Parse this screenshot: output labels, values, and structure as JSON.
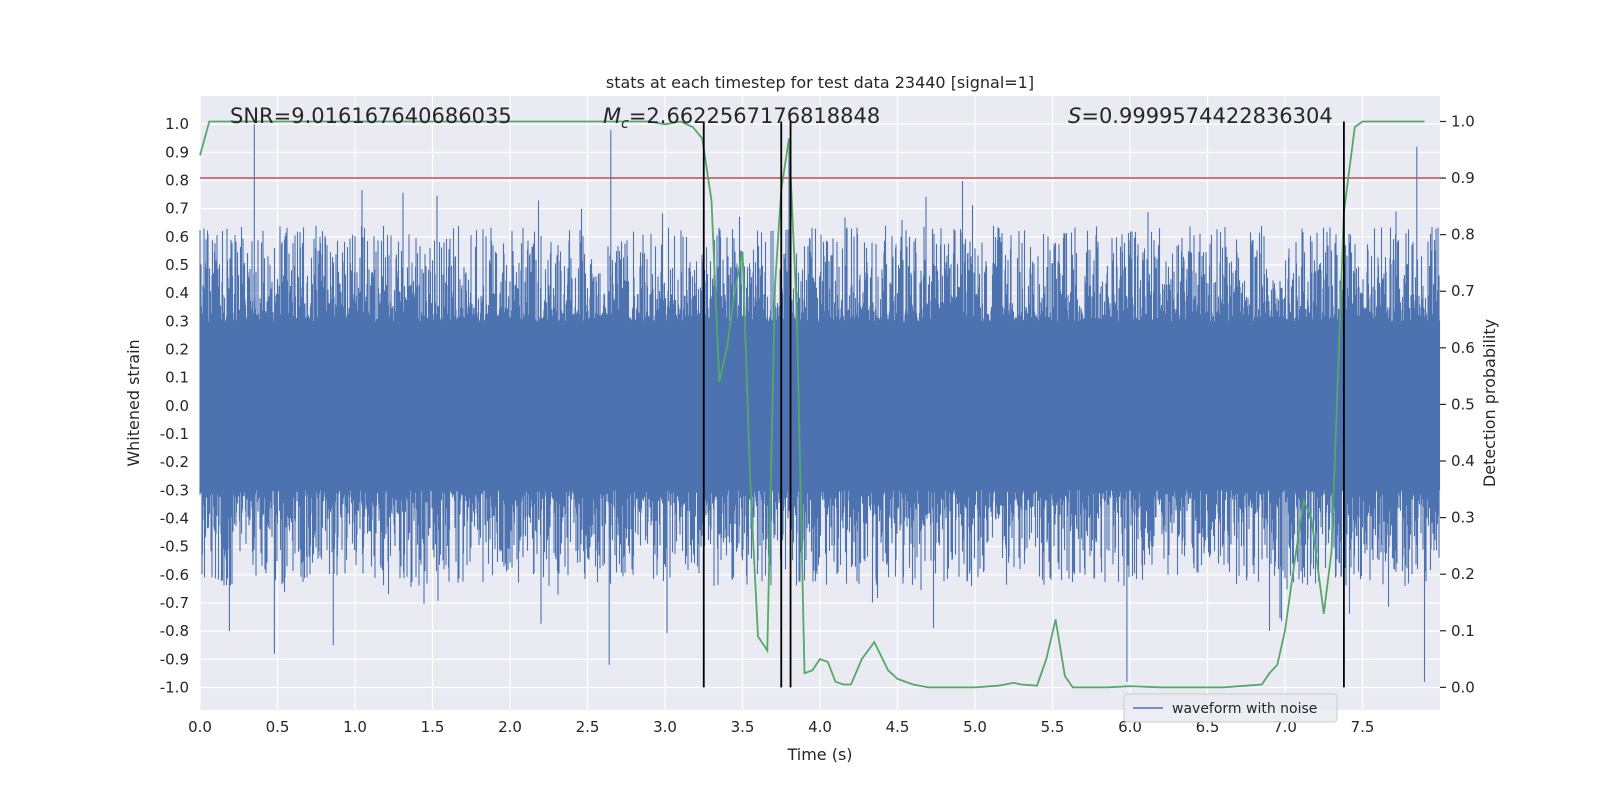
{
  "chart_data": {
    "type": "line",
    "title": "stats at each timestep for test data 23440 [signal=1]",
    "xlabel": "Time (s)",
    "ylabel": "Whitened strain",
    "y2label": "Detection probability",
    "xlim": [
      0.0,
      8.0
    ],
    "ylim": [
      -1.08,
      1.1
    ],
    "y2lim": [
      -0.04,
      1.045
    ],
    "xticks": [
      0.0,
      0.5,
      1.0,
      1.5,
      2.0,
      2.5,
      3.0,
      3.5,
      4.0,
      4.5,
      5.0,
      5.5,
      6.0,
      6.5,
      7.0,
      7.5
    ],
    "xtick_labels": [
      "0.0",
      "0.5",
      "1.0",
      "1.5",
      "2.0",
      "2.5",
      "3.0",
      "3.5",
      "4.0",
      "4.5",
      "5.0",
      "5.5",
      "6.0",
      "6.5",
      "7.0",
      "7.5"
    ],
    "yticks": [
      1.0,
      0.9,
      0.8,
      0.7,
      0.6,
      0.5,
      0.4,
      0.3,
      0.2,
      0.1,
      0.0,
      -0.1,
      -0.2,
      -0.3,
      -0.4,
      -0.5,
      -0.6,
      -0.7,
      -0.8,
      -0.9,
      -1.0
    ],
    "ytick_labels": [
      "1.0",
      "0.9",
      "0.8",
      "0.7",
      "0.6",
      "0.5",
      "0.4",
      "0.3",
      "0.2",
      "0.1",
      "0.0",
      "-0.1",
      "-0.2",
      "-0.3",
      "-0.4",
      "-0.5",
      "-0.6",
      "-0.7",
      "-0.8",
      "-0.9",
      "-1.0"
    ],
    "y2ticks": [
      1.0,
      0.9,
      0.8,
      0.7,
      0.6,
      0.5,
      0.4,
      0.3,
      0.2,
      0.1,
      0.0
    ],
    "y2tick_labels": [
      "1.0",
      "0.9",
      "0.8",
      "0.7",
      "0.6",
      "0.5",
      "0.4",
      "0.3",
      "0.2",
      "0.1",
      "0.0"
    ],
    "annotations": {
      "snr": "SNR=9.016167640686035",
      "mc_symbol": "M",
      "mc_sub": "c",
      "mc_value": "=2.6622567176818848",
      "s_symbol": "S",
      "s_value": "=0.9999574422836304"
    },
    "threshold": {
      "axis": "y2",
      "value": 0.9,
      "color": "#c44e52"
    },
    "event_markers_x": [
      3.25,
      3.75,
      3.81,
      7.38
    ],
    "waveform": {
      "name": "waveform with noise",
      "color": "#4c72b0",
      "sample_rate_hz": 2048,
      "core_amplitude": 0.3,
      "peaks": [
        [
          0.35,
          1.0
        ],
        [
          0.19,
          -0.8
        ],
        [
          0.48,
          -0.88
        ],
        [
          0.86,
          -0.85
        ],
        [
          2.65,
          0.98
        ],
        [
          2.64,
          -0.92
        ],
        [
          3.25,
          1.0
        ],
        [
          3.8,
          0.92
        ],
        [
          5.98,
          -0.98
        ],
        [
          7.85,
          0.92
        ],
        [
          7.9,
          -0.98
        ]
      ]
    },
    "series": [
      {
        "name": "Detection probability",
        "axis": "y2",
        "color": "#55a868",
        "x": [
          0.0,
          0.06,
          0.5,
          1.0,
          1.5,
          2.0,
          2.5,
          2.9,
          3.0,
          3.1,
          3.18,
          3.24,
          3.3,
          3.35,
          3.4,
          3.45,
          3.5,
          3.55,
          3.6,
          3.66,
          3.71,
          3.75,
          3.8,
          3.85,
          3.9,
          3.95,
          4.0,
          4.05,
          4.1,
          4.15,
          4.2,
          4.27,
          4.35,
          4.44,
          4.5,
          4.6,
          4.7,
          4.85,
          5.0,
          5.15,
          5.25,
          5.3,
          5.4,
          5.46,
          5.52,
          5.58,
          5.63,
          5.75,
          5.85,
          6.0,
          6.2,
          6.4,
          6.6,
          6.75,
          6.85,
          6.9,
          6.95,
          7.0,
          7.05,
          7.12,
          7.17,
          7.25,
          7.3,
          7.38,
          7.45,
          7.5,
          7.6,
          7.75,
          7.9
        ],
        "y": [
          0.94,
          1.0,
          1.0,
          1.0,
          1.0,
          1.0,
          1.0,
          1.0,
          0.995,
          1.0,
          0.99,
          0.97,
          0.86,
          0.54,
          0.6,
          0.7,
          0.77,
          0.36,
          0.09,
          0.065,
          0.71,
          0.88,
          0.97,
          0.66,
          0.025,
          0.03,
          0.05,
          0.045,
          0.01,
          0.005,
          0.005,
          0.05,
          0.08,
          0.03,
          0.015,
          0.005,
          0.0,
          0.0,
          0.0,
          0.003,
          0.008,
          0.005,
          0.003,
          0.05,
          0.12,
          0.02,
          0.0,
          0.0,
          0.0,
          0.002,
          0.0,
          0.0,
          0.0,
          0.003,
          0.005,
          0.025,
          0.04,
          0.1,
          0.2,
          0.33,
          0.3,
          0.13,
          0.24,
          0.84,
          0.99,
          1.0,
          1.0,
          1.0,
          1.0
        ]
      }
    ]
  }
}
